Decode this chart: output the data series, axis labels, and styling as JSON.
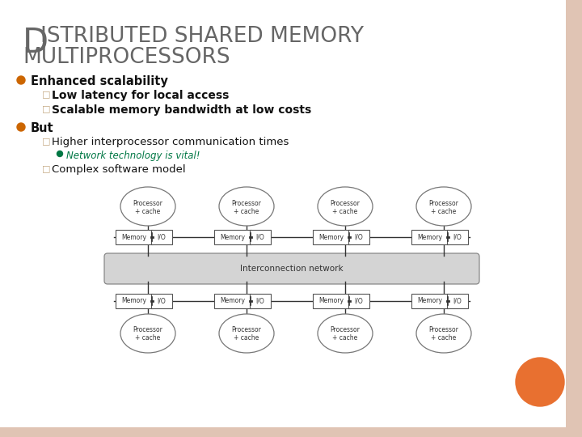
{
  "bg_color": "#ffffff",
  "border_color": "#e0c4b4",
  "title_D": "D",
  "title_rest1": "ISTRIBUTED SHARED MEMORY",
  "title_line2": "MULTIPROCESSORS",
  "title_color": "#666666",
  "bullet_color": "#cc6600",
  "bullet1_text": "Enhanced scalability",
  "sub1a": "Low latency for local access",
  "sub1b": "Scalable memory bandwidth at low costs",
  "bullet2_text": "But",
  "sub2a": "Higher interprocessor communication times",
  "sub2a_sub": "Network technology is vital!",
  "sub2a_sub_color": "#007744",
  "sub2b": "Complex software model",
  "diagram_bg": "#cccccc",
  "network_bg": "#d4d4d4",
  "orange_circle_color": "#e87030",
  "box_edge": "#555555",
  "line_color": "#333333"
}
